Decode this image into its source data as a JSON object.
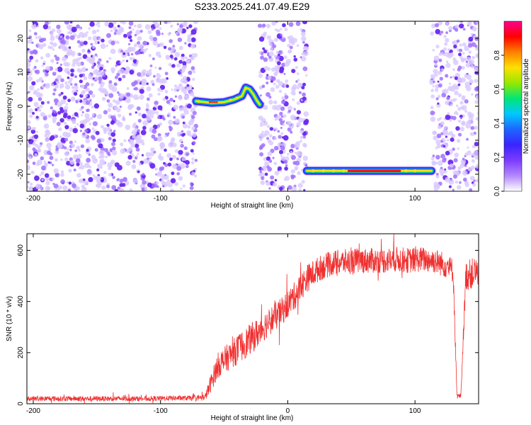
{
  "page_title": "S233.2025.241.07.49.E29",
  "colors": {
    "snr_line": "#f03030",
    "axis": "#000000",
    "colormap": [
      "#ffffff",
      "#b388ff",
      "#7c3cff",
      "#3a24ff",
      "#1e64ff",
      "#00c8ff",
      "#00e676",
      "#96e800",
      "#ffe000",
      "#ff8000",
      "#ff0000",
      "#ff0090"
    ]
  },
  "chart_data": [
    {
      "id": "spectrogram",
      "type": "heatmap",
      "xlabel": "Height of straight line (km)",
      "ylabel": "Frequency (Hz)",
      "xlim": [
        -205,
        150
      ],
      "ylim": [
        -25,
        25
      ],
      "xticks": [
        -200,
        -100,
        0,
        100
      ],
      "xtick_labels": [
        "-200",
        "-100",
        "0",
        "100"
      ],
      "yticks": [
        -20,
        -10,
        0,
        10,
        20
      ],
      "ytick_labels": [
        "-20",
        "-10",
        "0",
        "10",
        "20"
      ],
      "colorbar": {
        "label": "Normalized spectral amplitude",
        "range": [
          0,
          1
        ],
        "ticks": [
          0.0,
          0.2,
          0.4,
          0.6,
          0.8
        ],
        "tick_labels": [
          "0.0",
          "0.2",
          "0.4",
          "0.6",
          "0.8"
        ]
      },
      "noise_regions_km": [
        [
          -205,
          -72
        ],
        [
          -22,
          15
        ],
        [
          113,
          150
        ]
      ],
      "signal_tracks": [
        {
          "name": "upper track",
          "points": [
            [
              -72,
              1.5
            ],
            [
              -60,
              1.0
            ],
            [
              -50,
              1.2
            ],
            [
              -42,
              2.0
            ],
            [
              -36,
              3.0
            ],
            [
              -33,
              5.5
            ],
            [
              -30,
              5.0
            ],
            [
              -27,
              3.5
            ],
            [
              -24,
              1.5
            ],
            [
              -22,
              0.5
            ]
          ],
          "peak_amplitude": 0.85
        },
        {
          "name": "lower track",
          "points": [
            [
              15,
              -19.0
            ],
            [
              40,
              -19.0
            ],
            [
              60,
              -19.0
            ],
            [
              80,
              -19.0
            ],
            [
              100,
              -19.0
            ],
            [
              113,
              -19.0
            ]
          ],
          "peak_amplitude": 1.0
        }
      ]
    },
    {
      "id": "snr",
      "type": "line",
      "xlabel": "Height of straight line (km)",
      "ylabel": "SNR (10 * v/v)",
      "xlim": [
        -205,
        150
      ],
      "ylim": [
        0,
        665
      ],
      "xticks": [
        -200,
        -100,
        0,
        100
      ],
      "xtick_labels": [
        "-200",
        "-100",
        "0",
        "100"
      ],
      "yticks": [
        0,
        200,
        400,
        600
      ],
      "ytick_labels": [
        "0",
        "200",
        "400",
        "600"
      ],
      "series": [
        {
          "name": "SNR",
          "x": [
            -205,
            -190,
            -170,
            -150,
            -130,
            -110,
            -90,
            -75,
            -65,
            -62,
            -55,
            -45,
            -35,
            -25,
            -15,
            -5,
            5,
            15,
            25,
            35,
            45,
            55,
            65,
            75,
            85,
            95,
            105,
            115,
            125,
            130,
            133,
            136,
            140,
            150
          ],
          "values": [
            20,
            20,
            20,
            20,
            20,
            20,
            22,
            22,
            25,
            60,
            150,
            190,
            230,
            270,
            320,
            360,
            420,
            490,
            530,
            550,
            555,
            560,
            560,
            560,
            565,
            560,
            565,
            560,
            540,
            520,
            30,
            30,
            500,
            520
          ],
          "noise": [
            10,
            10,
            10,
            10,
            10,
            10,
            10,
            10,
            12,
            30,
            50,
            55,
            60,
            60,
            55,
            55,
            55,
            55,
            50,
            50,
            50,
            50,
            50,
            50,
            50,
            50,
            50,
            50,
            50,
            50,
            10,
            10,
            60,
            60
          ]
        }
      ]
    }
  ]
}
